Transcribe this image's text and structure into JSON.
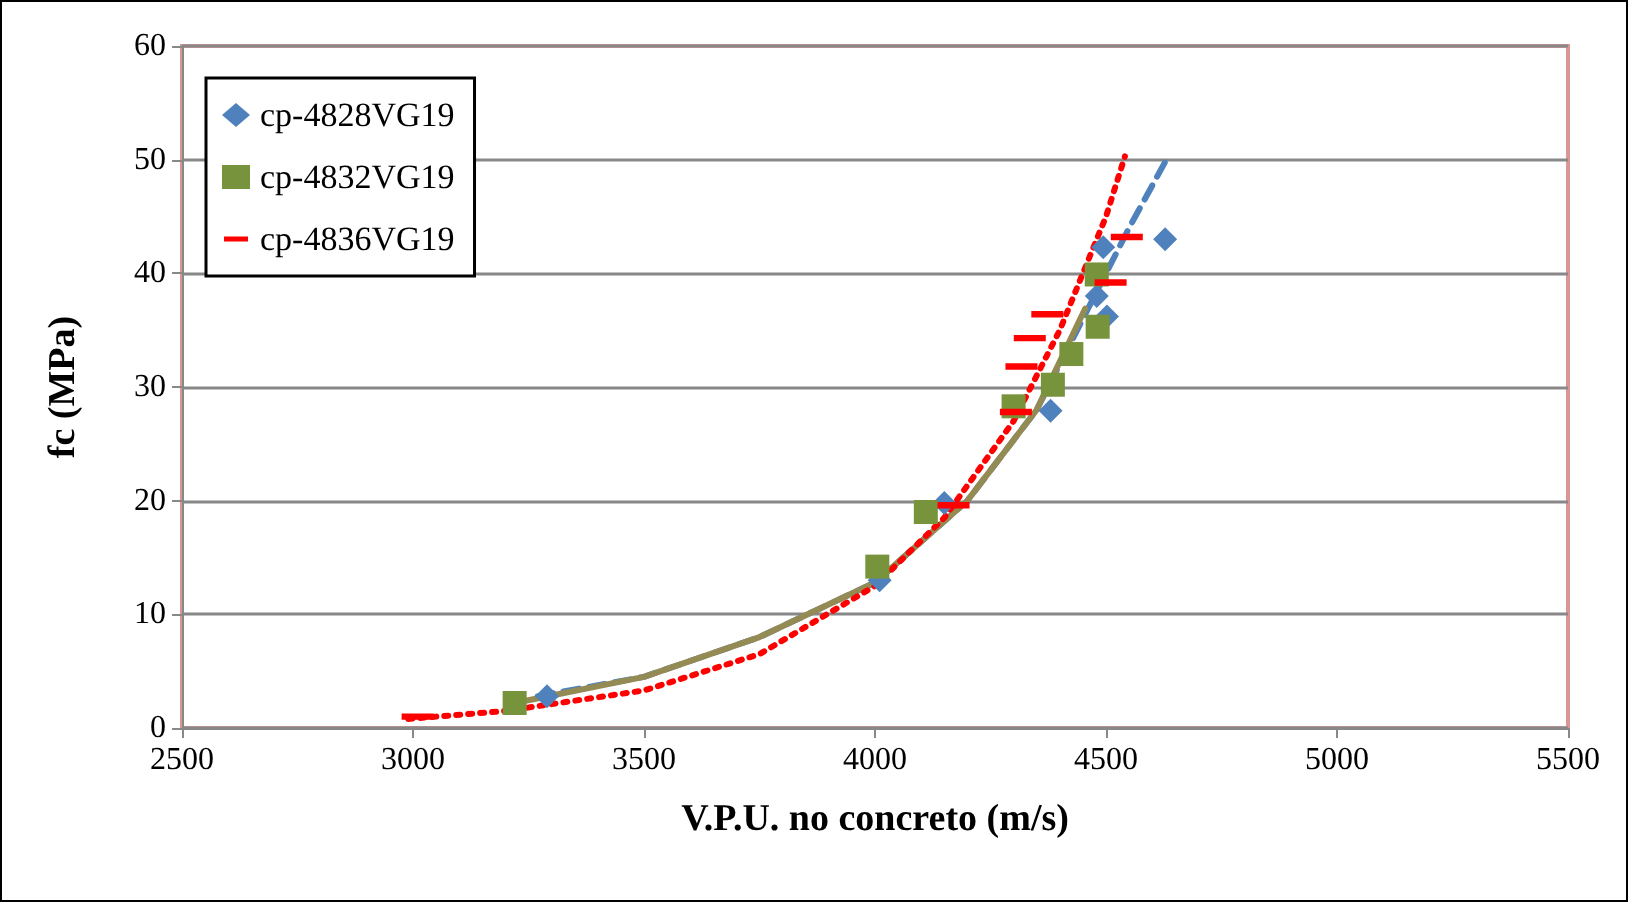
{
  "chart_data": {
    "type": "scatter",
    "xlabel": "V.P.U. no concreto (m/s)",
    "ylabel": "fc (MPa)",
    "xlim": [
      2500,
      5500
    ],
    "xticks": [
      2500,
      3000,
      3500,
      4000,
      4500,
      5000,
      5500
    ],
    "ylim": [
      0,
      60
    ],
    "yticks": [
      0,
      10,
      20,
      30,
      40,
      50,
      60
    ],
    "grid": "y",
    "legend": "top left",
    "series": [
      {
        "name": "cp-4828VG19",
        "marker": "diamond",
        "color": "#4f81bd",
        "x": [
          3290,
          4010,
          4150,
          4380,
          4502,
          4480,
          4494,
          4628
        ],
        "values": [
          2.8,
          13,
          19.8,
          27.9,
          36.2,
          38,
          42.3,
          43
        ]
      },
      {
        "name": "cp-4832VG19",
        "marker": "square",
        "color": "#77933c",
        "x": [
          3220,
          4005,
          4110,
          4300,
          4385,
          4425,
          4482,
          4480
        ],
        "values": [
          2.2,
          14.2,
          19,
          28.3,
          30.2,
          32.9,
          35.3,
          39.9
        ]
      },
      {
        "name": "cp-4836VG19",
        "color": "#ff0000",
        "x": [
          3010,
          4170,
          4305,
          4317,
          4335,
          4373,
          4510,
          4545
        ],
        "values": [
          1,
          19.6,
          27.8,
          31.8,
          34.3,
          36.4,
          39.2,
          43.2
        ]
      },
      {
        "type": "line",
        "line_style": "dashed",
        "color": "#4f81bd",
        "x": [
          3270,
          3500,
          3750,
          4000,
          4200,
          4350,
          4450,
          4550,
          4628
        ],
        "values": [
          2.8,
          4.5,
          8,
          12.8,
          20,
          28,
          36,
          44,
          49.8
        ]
      },
      {
        "type": "line",
        "line_style": "solid",
        "color": "#948a54",
        "x": [
          3220,
          3500,
          3750,
          4000,
          4200,
          4350,
          4455
        ],
        "values": [
          2.2,
          4.5,
          8,
          12.8,
          20,
          28,
          36.9
        ]
      },
      {
        "type": "line",
        "line_style": "dotted",
        "color": "#ff0000",
        "x": [
          2990,
          3200,
          3500,
          3750,
          4000,
          4150,
          4300,
          4400,
          4500,
          4541
        ],
        "values": [
          0.8,
          1.5,
          3.3,
          6.5,
          12.5,
          18.5,
          27,
          35,
          45,
          50.3
        ]
      }
    ]
  }
}
